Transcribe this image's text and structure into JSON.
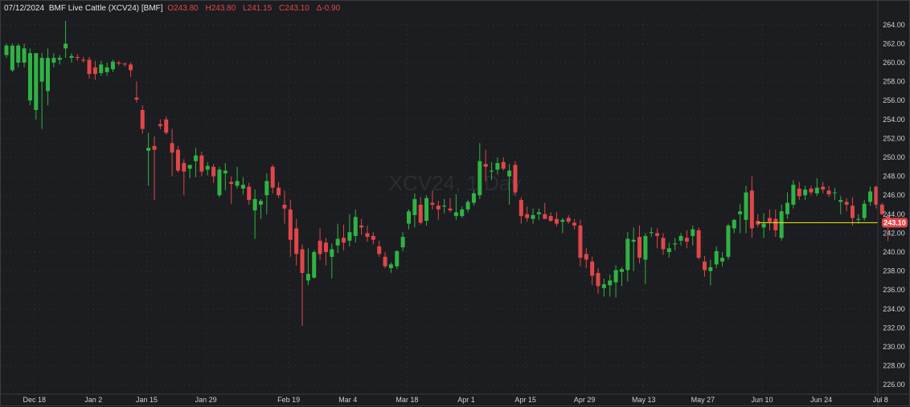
{
  "legend": {
    "date": "07/12/2024",
    "name": "BMF Live Cattle (XCV24) [BMF]",
    "open_label": "O",
    "open": "243.80",
    "high_label": "H",
    "high": "243.80",
    "low_label": "L",
    "low": "241.15",
    "close_label": "C",
    "close": "243.10",
    "change_label": "Δ",
    "change": "-0.90"
  },
  "watermark": "XCV24, 1 Day",
  "last_price_label": "243.10",
  "colors": {
    "background": "#1c1d20",
    "up": "#2fb344",
    "down": "#e0464a",
    "grid": "#33363b",
    "last_price_line": "#f2f20a",
    "last_price_badge": "#e0464a"
  },
  "chart_data": {
    "type": "candlestick",
    "title": "BMF Live Cattle (XCV24) [BMF]",
    "ylim": [
      225.0,
      265.0
    ],
    "y_ticks": [
      "226.00",
      "228.00",
      "230.00",
      "232.00",
      "234.00",
      "236.00",
      "238.00",
      "240.00",
      "242.00",
      "244.00",
      "246.00",
      "248.00",
      "250.00",
      "252.00",
      "254.00",
      "256.00",
      "258.00",
      "260.00",
      "262.00",
      "264.00"
    ],
    "x_ticks": [
      {
        "label": "Dec 18",
        "index": 2
      },
      {
        "label": "Jan 2",
        "index": 12
      },
      {
        "label": "Jan 15",
        "index": 21
      },
      {
        "label": "Jan 29",
        "index": 31
      },
      {
        "label": "Feb 19",
        "index": 45
      },
      {
        "label": "Mar 4",
        "index": 55
      },
      {
        "label": "Mar 18",
        "index": 65
      },
      {
        "label": "Apr 1",
        "index": 75
      },
      {
        "label": "Apr 15",
        "index": 85
      },
      {
        "label": "Apr 29",
        "index": 95
      },
      {
        "label": "May 13",
        "index": 105
      },
      {
        "label": "May 27",
        "index": 115
      },
      {
        "label": "Jun 10",
        "index": 125
      },
      {
        "label": "Jun 24",
        "index": 135
      },
      {
        "label": "Jul 8",
        "index": 145
      }
    ],
    "last_price": 243.1,
    "last_price_line_start_index": 127,
    "candles": [
      {
        "o": 260.8,
        "h": 262.0,
        "l": 260.5,
        "c": 261.8
      },
      {
        "o": 259.2,
        "h": 262.0,
        "l": 259.0,
        "c": 261.8
      },
      {
        "o": 260.0,
        "h": 262.0,
        "l": 259.5,
        "c": 261.8
      },
      {
        "o": 260.0,
        "h": 262.0,
        "l": 259.5,
        "c": 261.5
      },
      {
        "o": 256.0,
        "h": 261.5,
        "l": 255.5,
        "c": 261.0
      },
      {
        "o": 255.0,
        "h": 261.0,
        "l": 254.0,
        "c": 261.0
      },
      {
        "o": 258.0,
        "h": 261.0,
        "l": 253.0,
        "c": 260.5
      },
      {
        "o": 257.0,
        "h": 261.5,
        "l": 255.5,
        "c": 260.5
      },
      {
        "o": 260.0,
        "h": 261.0,
        "l": 259.5,
        "c": 260.5
      },
      {
        "o": 260.3,
        "h": 260.8,
        "l": 259.8,
        "c": 260.5
      },
      {
        "o": 261.5,
        "h": 264.4,
        "l": 260.5,
        "c": 262.0
      },
      {
        "o": 260.5,
        "h": 261.0,
        "l": 260.0,
        "c": 260.7
      },
      {
        "o": 260.6,
        "h": 260.9,
        "l": 260.2,
        "c": 260.5
      },
      {
        "o": 260.3,
        "h": 260.6,
        "l": 260.0,
        "c": 260.2
      },
      {
        "o": 260.3,
        "h": 260.6,
        "l": 258.3,
        "c": 258.8
      },
      {
        "o": 259.5,
        "h": 260.2,
        "l": 258.2,
        "c": 258.8
      },
      {
        "o": 258.9,
        "h": 260.2,
        "l": 258.6,
        "c": 259.8
      },
      {
        "o": 259.0,
        "h": 260.0,
        "l": 258.6,
        "c": 259.5
      },
      {
        "o": 259.3,
        "h": 260.3,
        "l": 259.0,
        "c": 260.1
      },
      {
        "o": 260.0,
        "h": 260.2,
        "l": 259.7,
        "c": 259.9
      },
      {
        "o": 259.9,
        "h": 260.0,
        "l": 259.6,
        "c": 259.8
      },
      {
        "o": 259.8,
        "h": 260.0,
        "l": 258.5,
        "c": 259.2
      },
      {
        "o": 256.3,
        "h": 258.0,
        "l": 255.8,
        "c": 256.1
      },
      {
        "o": 255.0,
        "h": 255.5,
        "l": 252.5,
        "c": 253.0
      },
      {
        "o": 250.7,
        "h": 252.6,
        "l": 247.0,
        "c": 251.0
      },
      {
        "o": 251.2,
        "h": 252.2,
        "l": 245.5,
        "c": 250.8
      },
      {
        "o": 253.5,
        "h": 254.0,
        "l": 253.0,
        "c": 253.3
      },
      {
        "o": 254.0,
        "h": 254.3,
        "l": 252.4,
        "c": 252.6
      },
      {
        "o": 251.5,
        "h": 253.0,
        "l": 248.0,
        "c": 250.5
      },
      {
        "o": 250.8,
        "h": 251.2,
        "l": 248.4,
        "c": 248.6
      },
      {
        "o": 249.4,
        "h": 249.8,
        "l": 246.0,
        "c": 248.5
      },
      {
        "o": 248.8,
        "h": 249.2,
        "l": 247.8,
        "c": 249.2
      },
      {
        "o": 249.6,
        "h": 251.0,
        "l": 247.9,
        "c": 250.2
      },
      {
        "o": 250.2,
        "h": 250.6,
        "l": 248.0,
        "c": 248.5
      },
      {
        "o": 248.7,
        "h": 249.5,
        "l": 248.1,
        "c": 249.1
      },
      {
        "o": 249.0,
        "h": 249.3,
        "l": 247.3,
        "c": 248.0
      },
      {
        "o": 246.0,
        "h": 249.0,
        "l": 245.8,
        "c": 248.7
      },
      {
        "o": 248.3,
        "h": 249.4,
        "l": 246.5,
        "c": 248.6
      },
      {
        "o": 247.4,
        "h": 248.0,
        "l": 245.1,
        "c": 247.2
      },
      {
        "o": 247.0,
        "h": 249.0,
        "l": 246.7,
        "c": 247.5
      },
      {
        "o": 246.7,
        "h": 247.9,
        "l": 246.1,
        "c": 247.1
      },
      {
        "o": 246.9,
        "h": 247.3,
        "l": 245.0,
        "c": 245.5
      },
      {
        "o": 244.4,
        "h": 246.6,
        "l": 241.4,
        "c": 245.6
      },
      {
        "o": 245.0,
        "h": 245.6,
        "l": 243.5,
        "c": 245.4
      },
      {
        "o": 246.0,
        "h": 248.3,
        "l": 244.0,
        "c": 247.5
      },
      {
        "o": 249.0,
        "h": 249.2,
        "l": 246.2,
        "c": 246.8
      },
      {
        "o": 246.8,
        "h": 247.4,
        "l": 245.7,
        "c": 246.0
      },
      {
        "o": 245.0,
        "h": 246.5,
        "l": 243.0,
        "c": 244.6
      },
      {
        "o": 244.5,
        "h": 245.5,
        "l": 239.5,
        "c": 241.3
      },
      {
        "o": 242.5,
        "h": 243.5,
        "l": 238.6,
        "c": 239.8
      },
      {
        "o": 240.3,
        "h": 240.8,
        "l": 232.2,
        "c": 237.8
      },
      {
        "o": 237.0,
        "h": 240.4,
        "l": 236.5,
        "c": 237.7
      },
      {
        "o": 237.3,
        "h": 240.2,
        "l": 237.2,
        "c": 240.0
      },
      {
        "o": 241.2,
        "h": 242.5,
        "l": 239.2,
        "c": 239.8
      },
      {
        "o": 241.0,
        "h": 241.5,
        "l": 238.6,
        "c": 240.0
      },
      {
        "o": 239.5,
        "h": 240.9,
        "l": 237.2,
        "c": 240.3
      },
      {
        "o": 240.7,
        "h": 243.0,
        "l": 239.9,
        "c": 241.4
      },
      {
        "o": 241.5,
        "h": 242.9,
        "l": 240.2,
        "c": 241.0
      },
      {
        "o": 241.2,
        "h": 244.0,
        "l": 240.6,
        "c": 242.1
      },
      {
        "o": 241.7,
        "h": 244.5,
        "l": 241.0,
        "c": 243.7
      },
      {
        "o": 242.8,
        "h": 243.5,
        "l": 241.8,
        "c": 242.6
      },
      {
        "o": 242.0,
        "h": 242.8,
        "l": 241.1,
        "c": 241.6
      },
      {
        "o": 241.7,
        "h": 242.1,
        "l": 240.8,
        "c": 241.3
      },
      {
        "o": 240.6,
        "h": 241.2,
        "l": 239.5,
        "c": 239.8
      },
      {
        "o": 239.5,
        "h": 240.0,
        "l": 238.3,
        "c": 238.5
      },
      {
        "o": 238.3,
        "h": 238.9,
        "l": 237.8,
        "c": 238.7
      },
      {
        "o": 238.5,
        "h": 240.2,
        "l": 238.2,
        "c": 240.1
      },
      {
        "o": 240.5,
        "h": 242.1,
        "l": 240.1,
        "c": 241.6
      },
      {
        "o": 243.0,
        "h": 244.5,
        "l": 242.4,
        "c": 244.3
      },
      {
        "o": 243.9,
        "h": 246.2,
        "l": 242.6,
        "c": 245.6
      },
      {
        "o": 245.0,
        "h": 245.8,
        "l": 242.9,
        "c": 243.1
      },
      {
        "o": 243.3,
        "h": 246.0,
        "l": 242.8,
        "c": 245.7
      },
      {
        "o": 245.2,
        "h": 246.5,
        "l": 244.5,
        "c": 245.0
      },
      {
        "o": 244.9,
        "h": 245.4,
        "l": 243.4,
        "c": 244.5
      },
      {
        "o": 244.8,
        "h": 245.6,
        "l": 244.1,
        "c": 244.9
      },
      {
        "o": 244.6,
        "h": 245.7,
        "l": 244.2,
        "c": 244.4
      },
      {
        "o": 243.8,
        "h": 246.1,
        "l": 243.4,
        "c": 244.2
      },
      {
        "o": 243.8,
        "h": 244.8,
        "l": 243.6,
        "c": 244.5
      },
      {
        "o": 244.5,
        "h": 245.5,
        "l": 244.2,
        "c": 245.3
      },
      {
        "o": 245.2,
        "h": 246.5,
        "l": 244.9,
        "c": 246.2
      },
      {
        "o": 246.0,
        "h": 251.5,
        "l": 245.6,
        "c": 249.6
      },
      {
        "o": 249.3,
        "h": 250.8,
        "l": 247.5,
        "c": 249.0
      },
      {
        "o": 248.5,
        "h": 249.5,
        "l": 247.6,
        "c": 248.6
      },
      {
        "o": 248.7,
        "h": 250.0,
        "l": 248.2,
        "c": 249.4
      },
      {
        "o": 249.5,
        "h": 250.0,
        "l": 248.6,
        "c": 248.8
      },
      {
        "o": 248.0,
        "h": 249.3,
        "l": 245.0,
        "c": 248.6
      },
      {
        "o": 249.2,
        "h": 249.6,
        "l": 245.9,
        "c": 246.3
      },
      {
        "o": 245.5,
        "h": 245.8,
        "l": 243.0,
        "c": 243.8
      },
      {
        "o": 244.0,
        "h": 244.8,
        "l": 243.2,
        "c": 243.6
      },
      {
        "o": 243.5,
        "h": 244.6,
        "l": 243.0,
        "c": 243.9
      },
      {
        "o": 244.0,
        "h": 244.6,
        "l": 243.4,
        "c": 244.2
      },
      {
        "o": 244.0,
        "h": 245.2,
        "l": 243.6,
        "c": 243.5
      },
      {
        "o": 243.8,
        "h": 244.2,
        "l": 243.2,
        "c": 243.3
      },
      {
        "o": 243.5,
        "h": 244.2,
        "l": 242.7,
        "c": 243.0
      },
      {
        "o": 243.2,
        "h": 243.6,
        "l": 242.0,
        "c": 243.4
      },
      {
        "o": 243.6,
        "h": 243.9,
        "l": 243.0,
        "c": 243.2
      },
      {
        "o": 243.1,
        "h": 243.5,
        "l": 242.4,
        "c": 242.8
      },
      {
        "o": 242.8,
        "h": 243.4,
        "l": 238.5,
        "c": 239.4
      },
      {
        "o": 239.8,
        "h": 240.4,
        "l": 238.3,
        "c": 239.2
      },
      {
        "o": 239.0,
        "h": 239.5,
        "l": 236.5,
        "c": 237.5
      },
      {
        "o": 237.8,
        "h": 238.3,
        "l": 235.6,
        "c": 236.4
      },
      {
        "o": 236.2,
        "h": 237.2,
        "l": 235.3,
        "c": 236.6
      },
      {
        "o": 236.5,
        "h": 237.6,
        "l": 235.3,
        "c": 237.0
      },
      {
        "o": 236.8,
        "h": 238.6,
        "l": 235.2,
        "c": 238.1
      },
      {
        "o": 237.9,
        "h": 238.4,
        "l": 236.4,
        "c": 238.2
      },
      {
        "o": 238.1,
        "h": 242.1,
        "l": 236.9,
        "c": 241.4
      },
      {
        "o": 241.1,
        "h": 242.6,
        "l": 238.0,
        "c": 241.3
      },
      {
        "o": 241.6,
        "h": 242.8,
        "l": 238.8,
        "c": 239.4
      },
      {
        "o": 239.2,
        "h": 242.0,
        "l": 236.6,
        "c": 241.7
      },
      {
        "o": 242.0,
        "h": 242.6,
        "l": 241.6,
        "c": 242.1
      },
      {
        "o": 242.0,
        "h": 242.5,
        "l": 240.4,
        "c": 241.7
      },
      {
        "o": 241.5,
        "h": 242.0,
        "l": 239.7,
        "c": 240.3
      },
      {
        "o": 240.0,
        "h": 241.0,
        "l": 239.4,
        "c": 240.4
      },
      {
        "o": 240.8,
        "h": 241.5,
        "l": 240.2,
        "c": 240.9
      },
      {
        "o": 241.2,
        "h": 242.0,
        "l": 240.7,
        "c": 241.7
      },
      {
        "o": 241.5,
        "h": 242.3,
        "l": 240.4,
        "c": 241.1
      },
      {
        "o": 241.7,
        "h": 242.8,
        "l": 240.7,
        "c": 242.4
      },
      {
        "o": 242.3,
        "h": 242.6,
        "l": 239.2,
        "c": 239.4
      },
      {
        "o": 239.0,
        "h": 239.6,
        "l": 237.4,
        "c": 238.1
      },
      {
        "o": 238.0,
        "h": 239.2,
        "l": 236.5,
        "c": 238.4
      },
      {
        "o": 238.7,
        "h": 240.6,
        "l": 238.3,
        "c": 240.1
      },
      {
        "o": 239.0,
        "h": 240.0,
        "l": 238.5,
        "c": 239.4
      },
      {
        "o": 239.5,
        "h": 243.0,
        "l": 239.2,
        "c": 242.8
      },
      {
        "o": 242.5,
        "h": 243.5,
        "l": 242.0,
        "c": 243.4
      },
      {
        "o": 244.0,
        "h": 245.1,
        "l": 242.0,
        "c": 244.3
      },
      {
        "o": 243.4,
        "h": 247.0,
        "l": 242.0,
        "c": 246.3
      },
      {
        "o": 246.5,
        "h": 248.0,
        "l": 241.5,
        "c": 242.5
      },
      {
        "o": 243.3,
        "h": 244.0,
        "l": 242.6,
        "c": 242.9
      },
      {
        "o": 242.6,
        "h": 244.1,
        "l": 241.5,
        "c": 243.0
      },
      {
        "o": 243.6,
        "h": 244.5,
        "l": 242.3,
        "c": 243.2
      },
      {
        "o": 243.5,
        "h": 244.5,
        "l": 241.6,
        "c": 242.3
      },
      {
        "o": 241.5,
        "h": 245.0,
        "l": 241.2,
        "c": 244.3
      },
      {
        "o": 244.0,
        "h": 246.3,
        "l": 243.5,
        "c": 245.2
      },
      {
        "o": 245.0,
        "h": 247.6,
        "l": 244.6,
        "c": 247.1
      },
      {
        "o": 246.7,
        "h": 247.4,
        "l": 245.5,
        "c": 245.9
      },
      {
        "o": 246.0,
        "h": 247.0,
        "l": 245.5,
        "c": 246.6
      },
      {
        "o": 246.7,
        "h": 247.0,
        "l": 246.0,
        "c": 246.3
      },
      {
        "o": 246.2,
        "h": 247.8,
        "l": 245.9,
        "c": 246.8
      },
      {
        "o": 246.9,
        "h": 247.4,
        "l": 246.2,
        "c": 246.6
      },
      {
        "o": 246.5,
        "h": 247.0,
        "l": 245.8,
        "c": 246.1
      },
      {
        "o": 246.3,
        "h": 246.8,
        "l": 245.5,
        "c": 246.3
      },
      {
        "o": 245.3,
        "h": 245.9,
        "l": 244.0,
        "c": 245.5
      },
      {
        "o": 245.3,
        "h": 245.7,
        "l": 244.3,
        "c": 245.0
      },
      {
        "o": 244.9,
        "h": 245.8,
        "l": 242.8,
        "c": 243.6
      },
      {
        "o": 243.4,
        "h": 244.0,
        "l": 243.0,
        "c": 243.5
      },
      {
        "o": 243.6,
        "h": 245.5,
        "l": 243.3,
        "c": 245.1
      },
      {
        "o": 245.3,
        "h": 246.9,
        "l": 244.9,
        "c": 246.4
      },
      {
        "o": 246.9,
        "h": 247.0,
        "l": 244.6,
        "c": 245.0
      },
      {
        "o": 245.0,
        "h": 245.2,
        "l": 243.9,
        "c": 244.0
      },
      {
        "o": 243.8,
        "h": 243.8,
        "l": 241.15,
        "c": 243.1
      }
    ]
  }
}
